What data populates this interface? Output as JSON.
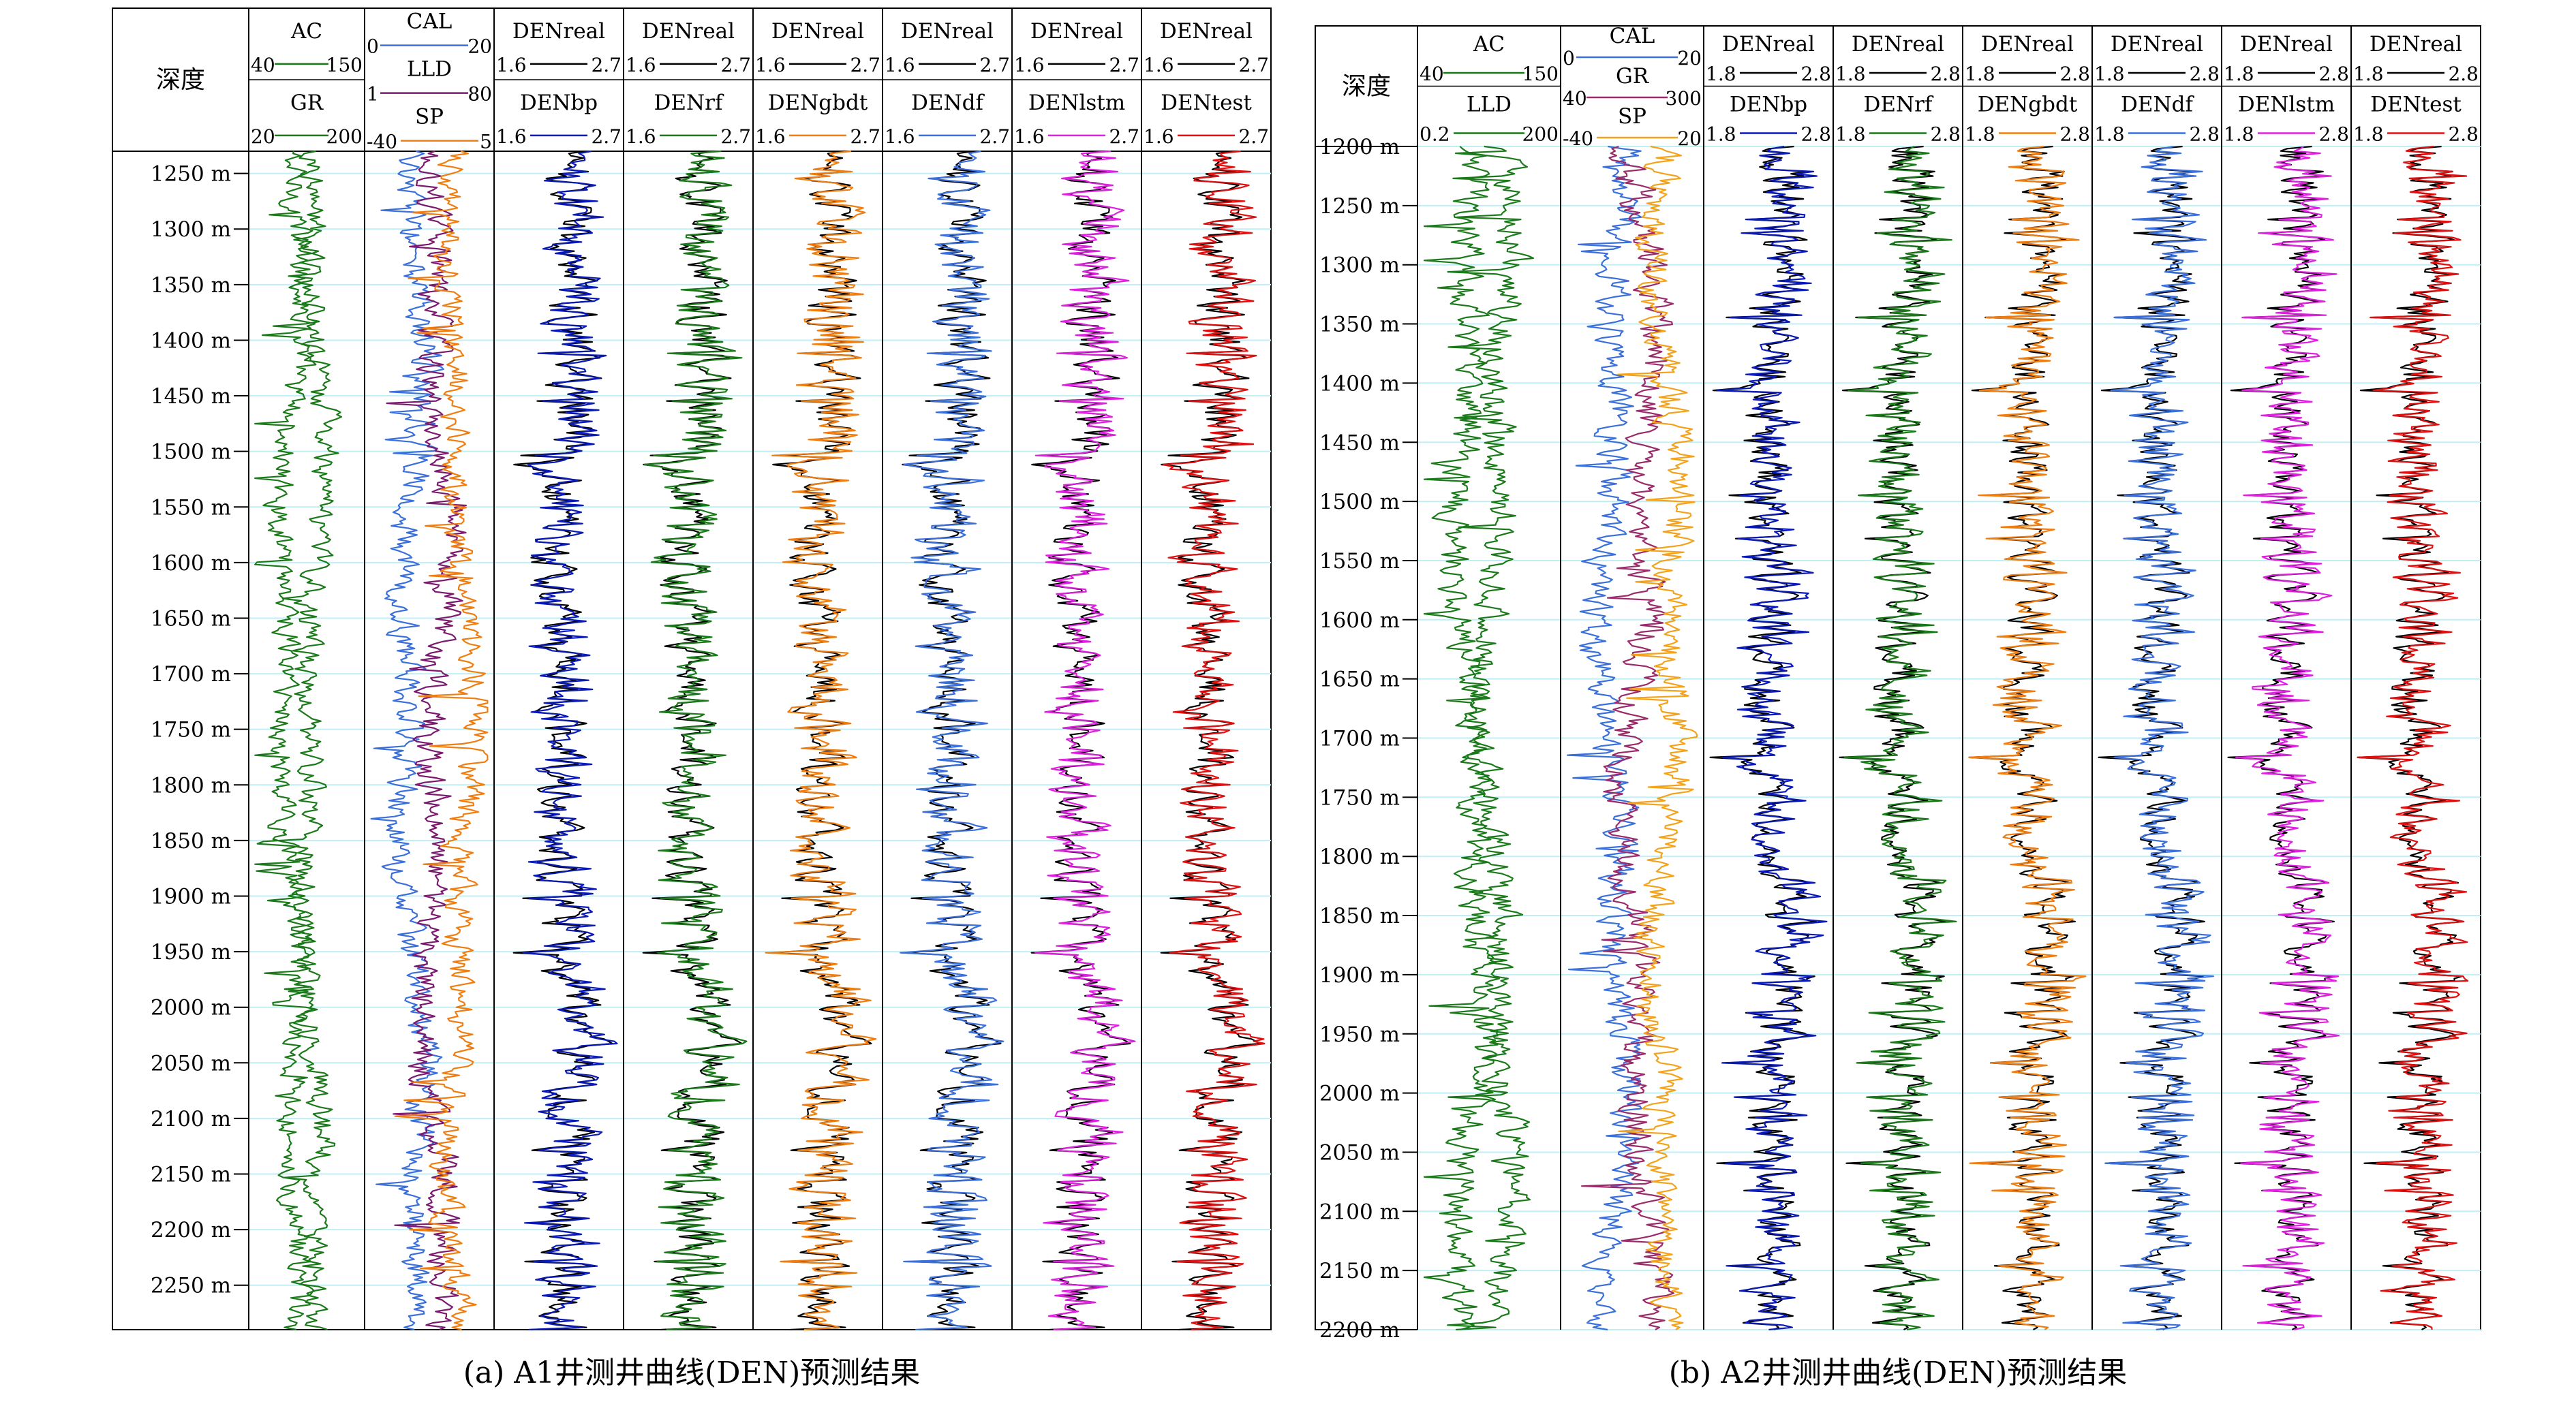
{
  "colors": {
    "real": "#000000",
    "ac": "#1a7a1a",
    "gr": "#1a7a1a",
    "cal": "#3a6fdc",
    "lld": "#7b1a6e",
    "sp": "#f07d0f",
    "bp": "#0a1ab8",
    "rf": "#1a7a1a",
    "gbdt": "#f07d0f",
    "df": "#3a6fdc",
    "lstm": "#e020e0",
    "test": "#e01010",
    "lld_b": "#1a7a1a",
    "gr_b": "#9a2a6a",
    "sp_b": "#f4a21a",
    "grid": "#bfeff5"
  },
  "chart_data": [
    {
      "type": "line",
      "caption": "(a) A1井测井曲线(DEN)预测结果",
      "depth_header": "深度",
      "depth_unit": "m",
      "depth_range": [
        1230,
        2290
      ],
      "depth_ticks": [
        1250,
        1300,
        1350,
        1400,
        1450,
        1500,
        1550,
        1600,
        1650,
        1700,
        1750,
        1800,
        1850,
        1900,
        1950,
        2000,
        2050,
        2100,
        2150,
        2200,
        2250
      ],
      "tracks": [
        {
          "curves": [
            {
              "name": "AC",
              "min": "40",
              "max": "150",
              "color_key": "ac"
            },
            {
              "name": "GR",
              "min": "20",
              "max": "200",
              "color_key": "gr"
            }
          ]
        },
        {
          "curves": [
            {
              "name": "CAL",
              "min": "0",
              "max": "20",
              "color_key": "cal"
            },
            {
              "name": "LLD",
              "min": "1",
              "max": "80",
              "color_key": "lld"
            },
            {
              "name": "SP",
              "min": "-40",
              "max": "5",
              "color_key": "sp"
            }
          ]
        },
        {
          "curves": [
            {
              "name": "DENreal",
              "min": "1.6",
              "max": "2.7",
              "color_key": "real"
            },
            {
              "name": "DENbp",
              "min": "1.6",
              "max": "2.7",
              "color_key": "bp"
            }
          ]
        },
        {
          "curves": [
            {
              "name": "DENreal",
              "min": "1.6",
              "max": "2.7",
              "color_key": "real"
            },
            {
              "name": "DENrf",
              "min": "1.6",
              "max": "2.7",
              "color_key": "rf"
            }
          ]
        },
        {
          "curves": [
            {
              "name": "DENreal",
              "min": "1.6",
              "max": "2.7",
              "color_key": "real"
            },
            {
              "name": "DENgbdt",
              "min": "1.6",
              "max": "2.7",
              "color_key": "gbdt"
            }
          ]
        },
        {
          "curves": [
            {
              "name": "DENreal",
              "min": "1.6",
              "max": "2.7",
              "color_key": "real"
            },
            {
              "name": "DENdf",
              "min": "1.6",
              "max": "2.7",
              "color_key": "df"
            }
          ]
        },
        {
          "curves": [
            {
              "name": "DENreal",
              "min": "1.6",
              "max": "2.7",
              "color_key": "real"
            },
            {
              "name": "DENlstm",
              "min": "1.6",
              "max": "2.7",
              "color_key": "lstm"
            }
          ]
        },
        {
          "curves": [
            {
              "name": "DENreal",
              "min": "1.6",
              "max": "2.7",
              "color_key": "real"
            },
            {
              "name": "DENtest",
              "min": "1.6",
              "max": "2.7",
              "color_key": "test"
            }
          ]
        }
      ]
    },
    {
      "type": "line",
      "caption": "(b) A2井测井曲线(DEN)预测结果",
      "depth_header": "深度",
      "depth_unit": "m",
      "depth_range": [
        1200,
        2200
      ],
      "depth_ticks": [
        1200,
        1250,
        1300,
        1350,
        1400,
        1450,
        1500,
        1550,
        1600,
        1650,
        1700,
        1750,
        1800,
        1850,
        1900,
        1950,
        2000,
        2050,
        2100,
        2150,
        2200
      ],
      "tracks": [
        {
          "curves": [
            {
              "name": "AC",
              "min": "40",
              "max": "150",
              "color_key": "ac"
            },
            {
              "name": "LLD",
              "min": "0.2",
              "max": "200",
              "color_key": "lld_b"
            }
          ]
        },
        {
          "curves": [
            {
              "name": "CAL",
              "min": "0",
              "max": "20",
              "color_key": "cal"
            },
            {
              "name": "GR",
              "min": "40",
              "max": "300",
              "color_key": "gr_b"
            },
            {
              "name": "SP",
              "min": "-40",
              "max": "20",
              "color_key": "sp_b"
            }
          ]
        },
        {
          "curves": [
            {
              "name": "DENreal",
              "min": "1.8",
              "max": "2.8",
              "color_key": "real"
            },
            {
              "name": "DENbp",
              "min": "1.8",
              "max": "2.8",
              "color_key": "bp"
            }
          ]
        },
        {
          "curves": [
            {
              "name": "DENreal",
              "min": "1.8",
              "max": "2.8",
              "color_key": "real"
            },
            {
              "name": "DENrf",
              "min": "1.8",
              "max": "2.8",
              "color_key": "rf"
            }
          ]
        },
        {
          "curves": [
            {
              "name": "DENreal",
              "min": "1.8",
              "max": "2.8",
              "color_key": "real"
            },
            {
              "name": "DENgbdt",
              "min": "1.8",
              "max": "2.8",
              "color_key": "gbdt"
            }
          ]
        },
        {
          "curves": [
            {
              "name": "DENreal",
              "min": "1.8",
              "max": "2.8",
              "color_key": "real"
            },
            {
              "name": "DENdf",
              "min": "1.8",
              "max": "2.8",
              "color_key": "df"
            }
          ]
        },
        {
          "curves": [
            {
              "name": "DENreal",
              "min": "1.8",
              "max": "2.8",
              "color_key": "real"
            },
            {
              "name": "DENlstm",
              "min": "1.8",
              "max": "2.8",
              "color_key": "lstm"
            }
          ]
        },
        {
          "curves": [
            {
              "name": "DENreal",
              "min": "1.8",
              "max": "2.8",
              "color_key": "real"
            },
            {
              "name": "DENtest",
              "min": "1.8",
              "max": "2.8",
              "color_key": "test"
            }
          ]
        }
      ]
    }
  ]
}
